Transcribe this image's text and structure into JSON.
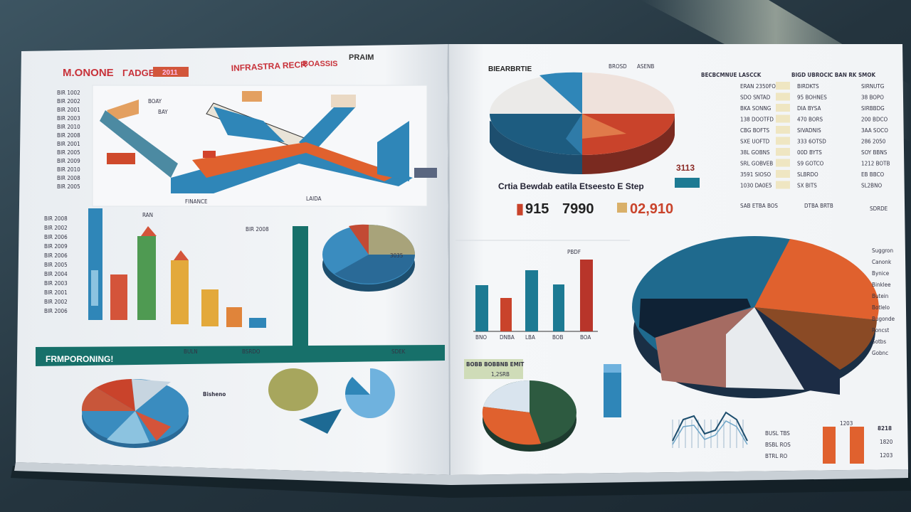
{
  "left_page": {
    "title": "M.ONONE",
    "title_tag": "ΓADGE",
    "title_badge": "2011",
    "chart_header": "INFRASTRA RECR",
    "chart_header_2": "BOASSIS",
    "chart_header_3": "PRAIM",
    "axis_labels": [
      "BIR 1002",
      "BIR 2002",
      "BIR 2001",
      "BIR 2003",
      "BIR 2010",
      "BIR 2008",
      "BIR 2001",
      "BIR 2005",
      "BIR 2009",
      "BIR 2010",
      "BIR 2008",
      "BIR 2005"
    ],
    "ribbon_notes": [
      "BOAY",
      "BAY",
      "FINANCE",
      "LAIDA"
    ],
    "bar_chart_title": "RAN",
    "bar_axis_labels": [
      "BIR 2008",
      "BIR 2002",
      "BIR 2006",
      "BIR 2009",
      "BIR 2006",
      "BIR 2005",
      "BIR 2004",
      "BIR 2003",
      "BIR 2001",
      "BIR 2002",
      "BIR 2006"
    ],
    "bar_values_label": "BIR 2008",
    "pie_label": "3035",
    "banner_title": "FRMPORONING!",
    "banner_cols": [
      "BULN",
      "BSRDO",
      "SDEK"
    ],
    "pie_legend_title": "Bisheno"
  },
  "right_page": {
    "pie_title": "BIEARBRTIE",
    "pie_labels": [
      "BROSD",
      "ASENB"
    ],
    "table_headers": [
      "BECBCMNUE LASCCK",
      "BIGD UBROCI",
      "C BAN RK SMOK"
    ],
    "table_rows": [
      [
        "ERAN 2350FO",
        "BIRDKTS",
        "SIRNUTG"
      ],
      [
        "SDO SNTAD",
        "95 BOHNES",
        "38 BOPO"
      ],
      [
        "BKA SONNG",
        "DIA BYSA",
        "SIRBBDG"
      ],
      [
        "138 DOOTFD",
        "470 BORS",
        "200 BDCO"
      ],
      [
        "CBG BOFTS",
        "SIVADNIS",
        "3AA SOCO"
      ],
      [
        "SXE UOFTD",
        "333 6OTSD",
        "286 2050"
      ],
      [
        "38L GOBNS",
        "00D BYTS",
        "SOY BBNS"
      ],
      [
        "SRL GOBVEB",
        "S9 GOTCO",
        "1212 BOTB"
      ],
      [
        "3591 SIOSO",
        "SLBRDO",
        "EB BBCO"
      ],
      [
        "1030 DA0E5",
        "SX BITS",
        "SL2BNO"
      ]
    ],
    "tag": "3113",
    "summary_line": "Crtia Bewdab eatila Etseesto E Step",
    "kpi_1": "915",
    "kpi_2": "7990",
    "kpi_3": "02,910",
    "footer_notes": [
      "SAB ETBA BOS",
      "DTBA BRTB",
      "SDRDE"
    ],
    "bar_chart_title": "PBDF",
    "bar_categories": [
      "BNO",
      "DNBA",
      "LBA",
      "BOB",
      "BOA"
    ],
    "small_pie_header": "BOBB BOBBNB EMIT",
    "small_pie_sub": "1,2SRB",
    "legend_right": [
      "Suggron",
      "Canonk",
      "Bynice",
      "Binklee",
      "Butein",
      "Botlelo",
      "Bugonde",
      "Roncst",
      "Sotbs",
      "Gobnc"
    ],
    "line_chart_notes": [
      "BUSL TBS",
      "BSBL ROS",
      "BTRL RO"
    ],
    "orange_bars_values": [
      "1203",
      "8218",
      "1820",
      "1203"
    ]
  },
  "colors": {
    "background": "#22323c",
    "page": "#f3f5f7",
    "blue": "#2f86b8",
    "navy": "#1d4e6e",
    "red": "#c9432b",
    "orange": "#e06a32",
    "teal": "#17706a",
    "green": "#4f9a52",
    "yellow": "#e3a93b"
  }
}
